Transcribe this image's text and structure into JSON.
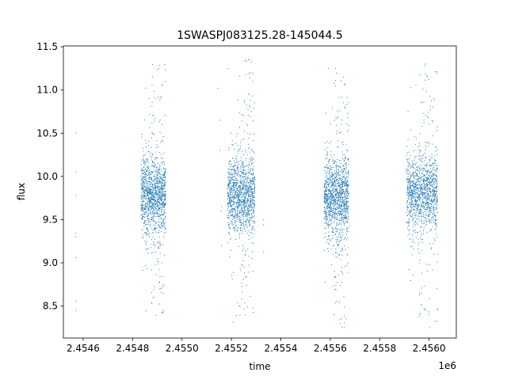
{
  "chart_data": {
    "type": "scatter",
    "title": "1SWASPJ083125.28-145044.5",
    "xlabel": "time",
    "ylabel": "flux",
    "x_offset_label": "1e6",
    "xlim": [
      2.45452,
      2.45611
    ],
    "ylim": [
      8.13,
      11.51
    ],
    "x_ticks": [
      2.4546,
      2.4548,
      2.455,
      2.4552,
      2.4554,
      2.4556,
      2.4558,
      2.456
    ],
    "x_tick_labels": [
      "2.4546",
      "2.4548",
      "2.4550",
      "2.4552",
      "2.4554",
      "2.4556",
      "2.4558",
      "2.4560"
    ],
    "y_ticks": [
      8.5,
      9.0,
      9.5,
      10.0,
      10.5,
      11.0,
      11.5
    ],
    "y_tick_labels": [
      "8.5",
      "9.0",
      "9.5",
      "10.0",
      "10.5",
      "11.0",
      "11.5"
    ],
    "grid": false,
    "marker_color": "#1f77b4",
    "series": [
      {
        "clusters": [
          {
            "x_range": [
              2.454835,
              2.454935
            ],
            "y_center": 9.8,
            "y_spread": 0.22,
            "outlier_range": [
              8.3,
              11.35
            ]
          },
          {
            "x_range": [
              2.455185,
              2.455295
            ],
            "y_center": 9.78,
            "y_spread": 0.22,
            "outlier_range": [
              8.3,
              11.35
            ]
          },
          {
            "x_range": [
              2.455575,
              2.455675
            ],
            "y_center": 9.75,
            "y_spread": 0.22,
            "outlier_range": [
              8.25,
              11.25
            ]
          },
          {
            "x_range": [
              2.45591,
              2.456035
            ],
            "y_center": 9.82,
            "y_spread": 0.22,
            "outlier_range": [
              8.25,
              11.35
            ]
          }
        ],
        "isolated_points": [
          [
            2.45457,
            10.5
          ],
          [
            2.45457,
            10.05
          ],
          [
            2.45457,
            9.78
          ],
          [
            2.45457,
            9.34
          ],
          [
            2.45457,
            9.3
          ],
          [
            2.45457,
            9.06
          ],
          [
            2.45457,
            8.56
          ],
          [
            2.45457,
            8.45
          ],
          [
            2.455145,
            11.02
          ],
          [
            2.455155,
            10.65
          ],
          [
            2.455155,
            10.3
          ],
          [
            2.45516,
            9.65
          ],
          [
            2.455158,
            9.6
          ],
          [
            2.45516,
            9.2
          ],
          [
            2.45533,
            9.5
          ],
          [
            2.45533,
            9.44
          ],
          [
            2.45533,
            9.13
          ]
        ]
      }
    ]
  }
}
